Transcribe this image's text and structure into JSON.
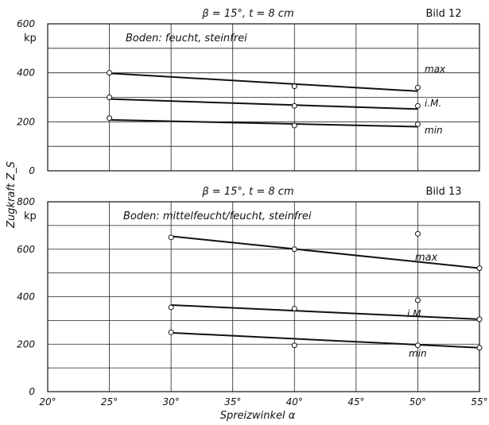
{
  "chart_data": [
    {
      "type": "scatter",
      "title": "β = 15°, t = 8 cm",
      "figure_label": "Bild 12",
      "annotation": "Boden: feucht, steinfrei",
      "ylabel": "Zugkraft Z_S",
      "yunit": "kp",
      "xlim": [
        20,
        55
      ],
      "ylim": [
        0,
        600
      ],
      "yticks": [
        0,
        200,
        400,
        600
      ],
      "grid": true,
      "series": [
        {
          "name": "max",
          "points": [
            [
              25,
              400
            ],
            [
              40,
              345
            ],
            [
              50,
              340
            ]
          ],
          "trend": [
            [
              25,
              398
            ],
            [
              50,
              325
            ]
          ]
        },
        {
          "name": "i.M.",
          "points": [
            [
              25,
              300
            ],
            [
              40,
              265
            ],
            [
              50,
              265
            ]
          ],
          "trend": [
            [
              25,
              293
            ],
            [
              50,
              252
            ]
          ]
        },
        {
          "name": "min",
          "points": [
            [
              25,
              215
            ],
            [
              40,
              185
            ],
            [
              50,
              190
            ]
          ],
          "trend": [
            [
              25,
              208
            ],
            [
              50,
              180
            ]
          ]
        }
      ]
    },
    {
      "type": "scatter",
      "title": "β = 15°, t = 8 cm",
      "figure_label": "Bild 13",
      "annotation": "Boden: mittelfeucht/feucht, steinfrei",
      "xlabel": "Spreizwinkel α",
      "ylabel": "Zugkraft Z_S",
      "yunit": "kp",
      "xlim": [
        20,
        55
      ],
      "ylim": [
        0,
        800
      ],
      "xticks": [
        "20°",
        "25°",
        "30°",
        "35°",
        "40°",
        "45°",
        "50°",
        "55°"
      ],
      "yticks": [
        0,
        200,
        400,
        600,
        800
      ],
      "grid": true,
      "series": [
        {
          "name": "max",
          "points": [
            [
              30,
              650
            ],
            [
              40,
              600
            ],
            [
              50,
              665
            ],
            [
              55,
              520
            ]
          ],
          "trend": [
            [
              30,
              655
            ],
            [
              55,
              520
            ]
          ]
        },
        {
          "name": "i.M.",
          "points": [
            [
              30,
              355
            ],
            [
              40,
              350
            ],
            [
              50,
              385
            ],
            [
              55,
              305
            ]
          ],
          "trend": [
            [
              30,
              365
            ],
            [
              55,
              305
            ]
          ]
        },
        {
          "name": "min",
          "points": [
            [
              30,
              250
            ],
            [
              40,
              195
            ],
            [
              50,
              195
            ],
            [
              55,
              185
            ]
          ],
          "trend": [
            [
              30,
              248
            ],
            [
              55,
              185
            ]
          ]
        }
      ]
    }
  ]
}
